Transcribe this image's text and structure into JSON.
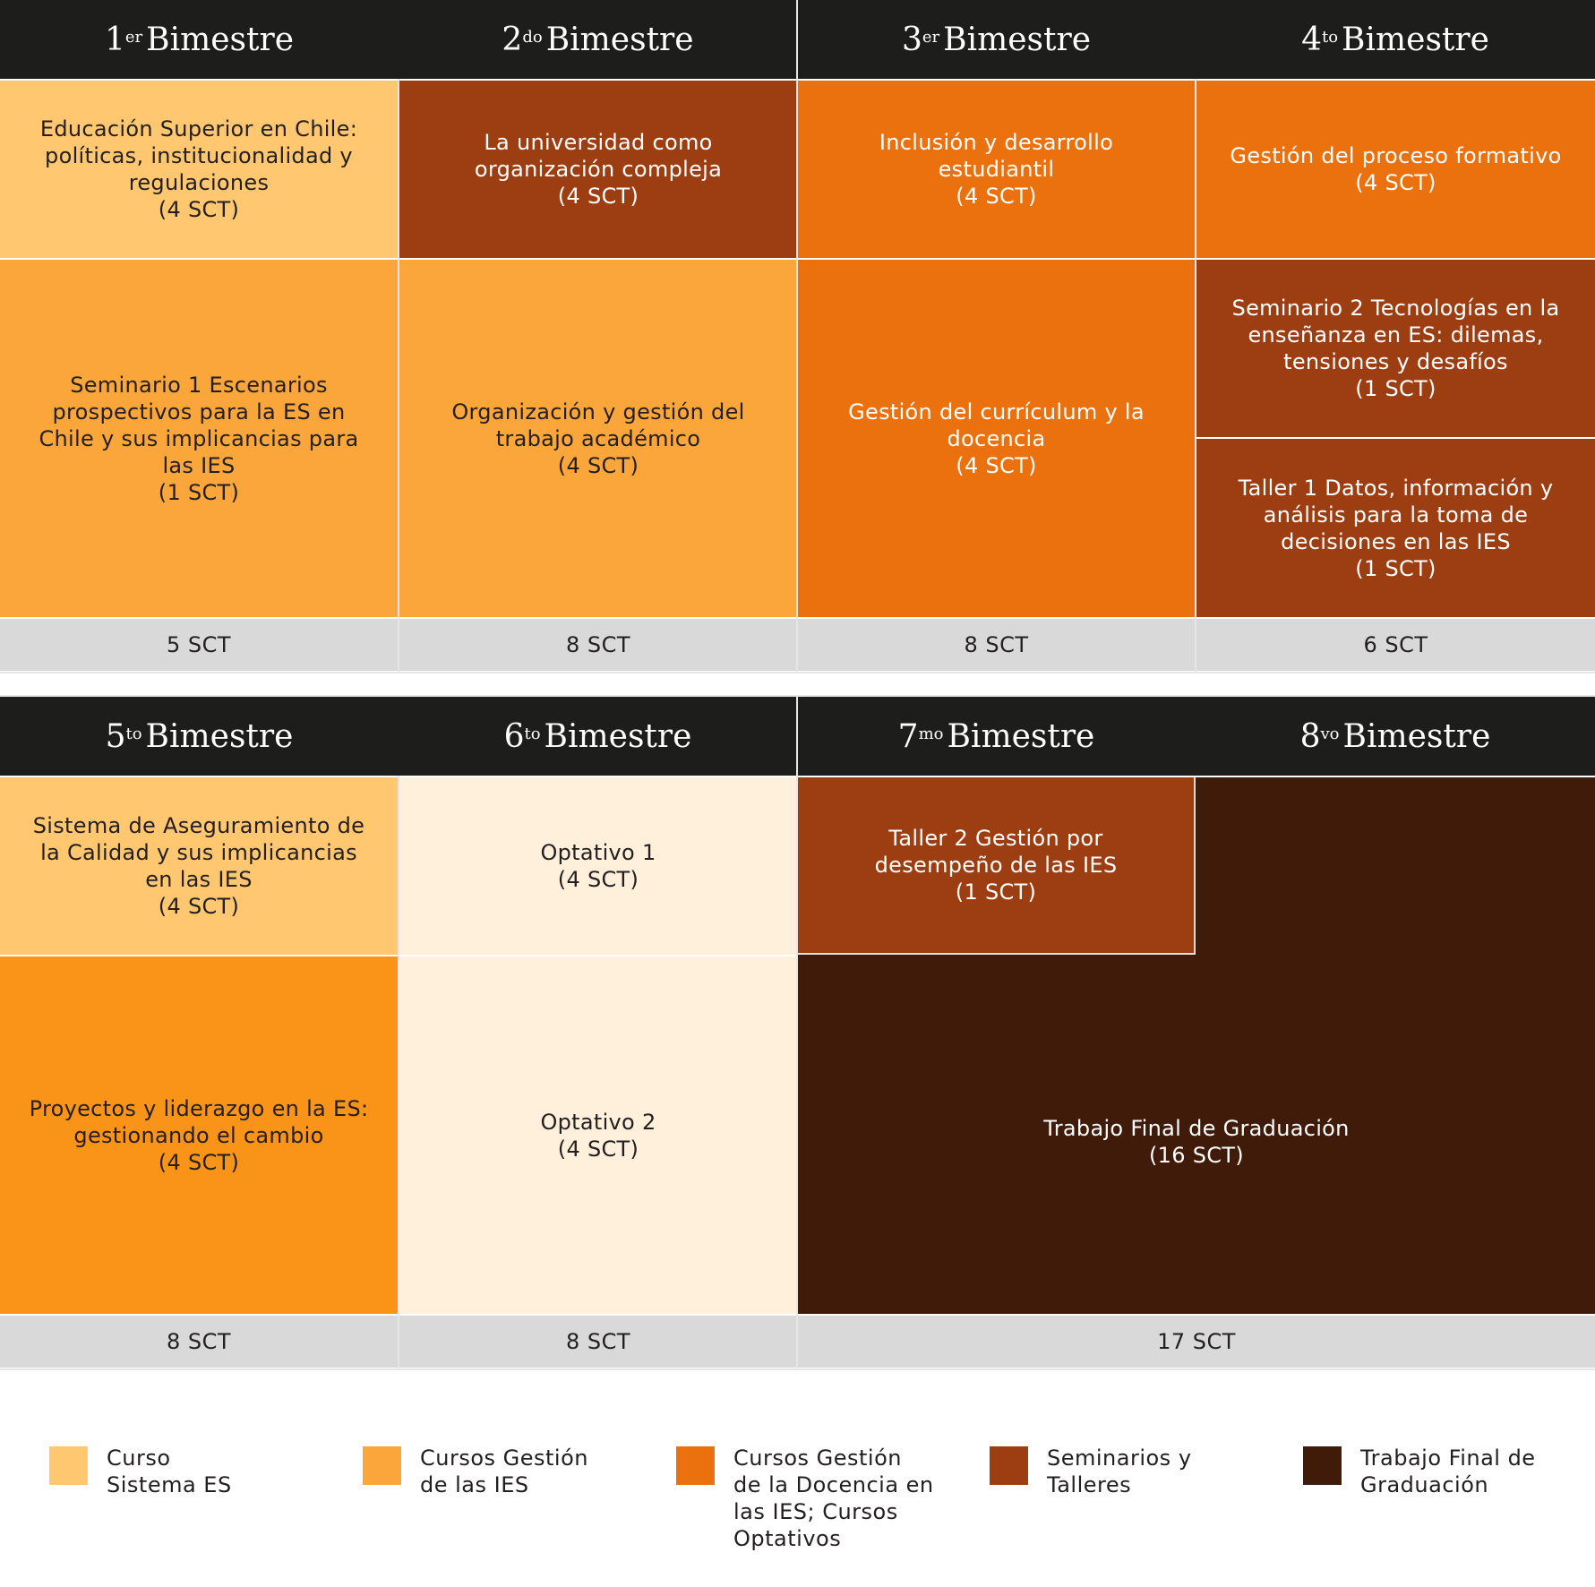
{
  "colors": {
    "sistema_es": "#fec770",
    "gestion_ies": "#fba63a",
    "gestion_docencia": "#ea710d",
    "seminarios": "#9c3e12",
    "trabajo_final": "#401b0a",
    "optativo": "#fef0db",
    "header": "#1d1d1b",
    "sct_row": "#d9d9d9"
  },
  "block1": {
    "headers": [
      {
        "num": "1",
        "sup": "er",
        "word": "Bimestre"
      },
      {
        "num": "2",
        "sup": "do",
        "word": "Bimestre"
      },
      {
        "num": "3",
        "sup": "er",
        "word": "Bimestre"
      },
      {
        "num": "4",
        "sup": "to",
        "word": "Bimestre"
      }
    ],
    "courses": {
      "c1a": {
        "title": "Educación Superior en Chile: políticas, institucionalidad y regulaciones",
        "sct": "(4 SCT)"
      },
      "c1b": {
        "title": "Seminario 1 Escenarios prospectivos para la ES en Chile y sus implicancias para las IES",
        "sct": "(1 SCT)"
      },
      "c2a": {
        "title": "La universidad como organización compleja",
        "sct": "(4 SCT)"
      },
      "c2b": {
        "title": "Organización y gestión del trabajo académico",
        "sct": "(4 SCT)"
      },
      "c3a": {
        "title": "Inclusión y desarrollo estudiantil",
        "sct": "(4 SCT)"
      },
      "c3b": {
        "title": "Gestión del currículum y la docencia",
        "sct": "(4 SCT)"
      },
      "c4a": {
        "title": "Gestión del proceso formativo",
        "sct": "(4 SCT)"
      },
      "c4b": {
        "title": "Seminario 2 Tecnologías en la enseñanza en ES: dilemas, tensiones y desafíos",
        "sct": "(1 SCT)"
      },
      "c4c": {
        "title": "Taller 1 Datos, información y análisis para la toma de decisiones en las IES",
        "sct": "(1 SCT)"
      }
    },
    "totals": [
      "5 SCT",
      "8 SCT",
      "8 SCT",
      "6 SCT"
    ]
  },
  "block2": {
    "headers": [
      {
        "num": "5",
        "sup": "to",
        "word": "Bimestre"
      },
      {
        "num": "6",
        "sup": "to",
        "word": "Bimestre"
      },
      {
        "num": "7",
        "sup": "mo",
        "word": "Bimestre"
      },
      {
        "num": "8",
        "sup": "vo",
        "word": "Bimestre"
      }
    ],
    "courses": {
      "c5a": {
        "title": "Sistema de Aseguramiento de la Calidad y sus implicancias en las IES",
        "sct": "(4 SCT)"
      },
      "c5b": {
        "title": "Proyectos y liderazgo en la ES: gestionando el cambio",
        "sct": "(4 SCT)"
      },
      "c6a": {
        "title": "Optativo 1",
        "sct": "(4 SCT)"
      },
      "c6b": {
        "title": "Optativo 2",
        "sct": "(4 SCT)"
      },
      "c7a": {
        "title": "Taller 2 Gestión por desempeño de las IES",
        "sct": "(1 SCT)"
      },
      "c78": {
        "title": "Trabajo Final de Graduación",
        "sct": "(16 SCT)"
      }
    },
    "totals": [
      "8 SCT",
      "8 SCT",
      "17 SCT"
    ]
  },
  "legend": [
    {
      "label": "Curso Sistema ES",
      "line1": "Curso",
      "line2": "Sistema ES",
      "line3": "",
      "line4": "",
      "color": "#fec770"
    },
    {
      "label": "Cursos Gestión de las IES",
      "line1": "Cursos Gestión",
      "line2": "de las IES",
      "line3": "",
      "line4": "",
      "color": "#fba63a"
    },
    {
      "label": "Cursos Gestión de la Docencia en las IES; Cursos Optativos",
      "line1": "Cursos Gestión",
      "line2": "de la Docencia en",
      "line3": "las IES; Cursos",
      "line4": "Optativos",
      "color": "#ea710d"
    },
    {
      "label": "Seminarios y Talleres",
      "line1": "Seminarios y",
      "line2": "Talleres",
      "line3": "",
      "line4": "",
      "color": "#9c3e12"
    },
    {
      "label": "Trabajo Final de Graduación",
      "line1": "Trabajo Final de",
      "line2": "Graduación",
      "line3": "",
      "line4": "",
      "color": "#401b0a"
    }
  ]
}
